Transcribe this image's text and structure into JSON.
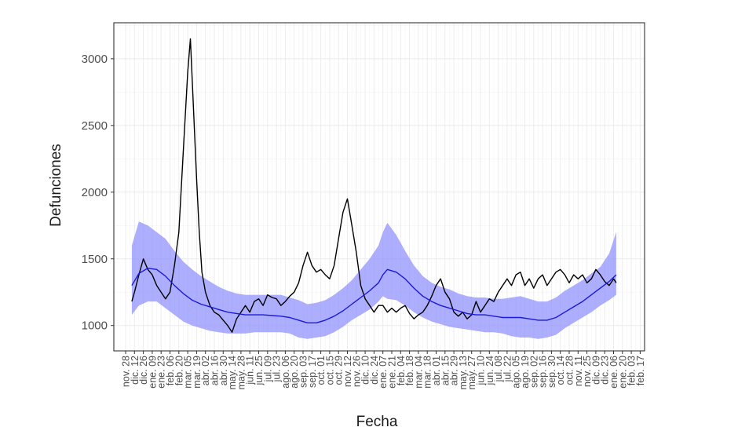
{
  "chart_data": {
    "type": "line",
    "title": "",
    "xlabel": "Fecha",
    "ylabel": "Defunciones",
    "ylim": [
      810,
      3270
    ],
    "y_ticks": [
      1000,
      1500,
      2000,
      2500,
      3000
    ],
    "grid": true,
    "x_tick_labels": [
      "nov. 28",
      "dic. 12",
      "dic. 26",
      "ene. 09",
      "ene. 23",
      "feb. 06",
      "feb. 20",
      "mar. 05",
      "mar. 19",
      "abr. 02",
      "abr. 16",
      "abr. 30",
      "may. 14",
      "may. 28",
      "jun. 11",
      "jun. 25",
      "jul. 09",
      "jul. 23",
      "ago. 06",
      "ago. 20",
      "sep. 03",
      "sep. 17",
      "oct. 01",
      "oct. 15",
      "oct. 29",
      "nov. 12",
      "nov. 26",
      "dic. 10",
      "dic. 24",
      "ene. 07",
      "ene. 21",
      "feb. 04",
      "feb. 18",
      "mar. 04",
      "mar. 18",
      "abr. 01",
      "abr. 15",
      "abr. 29",
      "may. 13",
      "may. 27",
      "jun. 10",
      "jun. 24",
      "jul. 08",
      "jul. 22",
      "ago. 05",
      "ago. 19",
      "sep. 02",
      "sep. 16",
      "sep. 30",
      "oct. 14",
      "oct. 28",
      "nov. 11",
      "nov. 25",
      "dic. 09",
      "dic. 23",
      "ene. 06",
      "ene. 20",
      "feb. 03",
      "feb. 17"
    ],
    "series": [
      {
        "role": "observed",
        "color": "#000000",
        "x_tick_index": [
          0.7,
          1,
          1.5,
          2,
          2.5,
          3,
          3.5,
          4,
          4.5,
          5,
          5.5,
          6,
          6.5,
          7,
          7.3,
          7.6,
          8,
          8.3,
          8.6,
          9,
          9.5,
          10,
          10.5,
          11,
          11.5,
          12,
          12.5,
          13,
          13.5,
          14,
          14.5,
          15,
          15.5,
          16,
          16.5,
          17,
          17.5,
          18,
          18.5,
          19,
          19.5,
          20,
          20.5,
          21,
          21.5,
          22,
          22.5,
          23,
          23.5,
          24,
          24.5,
          25,
          25.5,
          26,
          26.5,
          27,
          27.5,
          28,
          28.5,
          29,
          29.5,
          30,
          30.5,
          31,
          31.5,
          32,
          32.5,
          33,
          33.5,
          34,
          34.5,
          35,
          35.5,
          36,
          36.5,
          37,
          37.5,
          38,
          38.5,
          39,
          39.5,
          40,
          40.5,
          41,
          41.5,
          42,
          42.5,
          43,
          43.5,
          44,
          44.5,
          45,
          45.5,
          46,
          46.5,
          47,
          47.5,
          48,
          48.5,
          49,
          49.5,
          50,
          50.5,
          51,
          51.5,
          52,
          52.5,
          53,
          53.5,
          54,
          54.5,
          55,
          55.3
        ],
        "values": [
          1180,
          1250,
          1380,
          1500,
          1420,
          1380,
          1300,
          1250,
          1200,
          1250,
          1450,
          1700,
          2300,
          2900,
          3150,
          2700,
          2100,
          1700,
          1400,
          1250,
          1150,
          1100,
          1080,
          1040,
          1000,
          950,
          1050,
          1100,
          1150,
          1100,
          1180,
          1200,
          1150,
          1230,
          1210,
          1200,
          1150,
          1180,
          1220,
          1250,
          1320,
          1450,
          1550,
          1450,
          1400,
          1420,
          1380,
          1350,
          1450,
          1650,
          1850,
          1950,
          1750,
          1550,
          1300,
          1200,
          1150,
          1100,
          1150,
          1150,
          1100,
          1130,
          1100,
          1130,
          1150,
          1090,
          1050,
          1080,
          1100,
          1150,
          1220,
          1300,
          1350,
          1250,
          1200,
          1100,
          1070,
          1100,
          1050,
          1080,
          1180,
          1100,
          1150,
          1200,
          1180,
          1250,
          1300,
          1350,
          1300,
          1380,
          1400,
          1300,
          1350,
          1280,
          1350,
          1380,
          1300,
          1350,
          1400,
          1420,
          1380,
          1320,
          1380,
          1350,
          1380,
          1320,
          1350,
          1420,
          1380,
          1330,
          1300,
          1350,
          1320
        ]
      },
      {
        "role": "expected",
        "color": "#1a1adb",
        "x_tick_index": [
          0.7,
          1.5,
          2.5,
          3.5,
          4.5,
          5.5,
          6.5,
          7.5,
          8.5,
          9.5,
          10.5,
          11.5,
          12.5,
          13.5,
          14.5,
          15.5,
          16.5,
          17.5,
          18.5,
          19.5,
          20.5,
          21.5,
          22.5,
          23.5,
          24.5,
          25.5,
          26.5,
          27.5,
          28.5,
          29,
          29.5,
          30.5,
          31.5,
          32.5,
          33.5,
          34.5,
          35.5,
          36.5,
          37.5,
          38.5,
          39.5,
          40.5,
          41.5,
          42.5,
          43.5,
          44.5,
          45.5,
          46.5,
          47.5,
          48.5,
          49.5,
          50.5,
          51.5,
          52.5,
          53.5,
          54.5,
          55.3
        ],
        "values": [
          1300,
          1390,
          1430,
          1420,
          1370,
          1300,
          1240,
          1190,
          1160,
          1140,
          1120,
          1100,
          1090,
          1080,
          1080,
          1080,
          1075,
          1070,
          1060,
          1040,
          1020,
          1020,
          1040,
          1070,
          1110,
          1160,
          1210,
          1260,
          1320,
          1380,
          1420,
          1400,
          1350,
          1280,
          1220,
          1180,
          1150,
          1130,
          1110,
          1090,
          1080,
          1080,
          1070,
          1060,
          1060,
          1060,
          1050,
          1040,
          1040,
          1060,
          1100,
          1140,
          1180,
          1230,
          1280,
          1330,
          1380
        ],
        "band_upper": [
          1600,
          1780,
          1750,
          1700,
          1650,
          1560,
          1480,
          1420,
          1370,
          1330,
          1290,
          1260,
          1240,
          1230,
          1230,
          1230,
          1230,
          1230,
          1210,
          1190,
          1160,
          1170,
          1190,
          1230,
          1280,
          1340,
          1420,
          1500,
          1600,
          1700,
          1770,
          1680,
          1560,
          1450,
          1370,
          1320,
          1290,
          1270,
          1240,
          1220,
          1210,
          1210,
          1200,
          1200,
          1210,
          1220,
          1200,
          1180,
          1180,
          1210,
          1260,
          1300,
          1340,
          1390,
          1440,
          1540,
          1700
        ],
        "band_lower": [
          1080,
          1150,
          1180,
          1180,
          1130,
          1080,
          1030,
          1000,
          980,
          960,
          950,
          940,
          940,
          940,
          950,
          950,
          950,
          950,
          940,
          910,
          900,
          910,
          920,
          950,
          990,
          1040,
          1080,
          1120,
          1180,
          1220,
          1200,
          1190,
          1150,
          1100,
          1060,
          1030,
          1010,
          990,
          980,
          970,
          960,
          950,
          950,
          940,
          920,
          910,
          910,
          900,
          910,
          930,
          980,
          1020,
          1060,
          1100,
          1150,
          1190,
          1230
        ]
      }
    ]
  }
}
